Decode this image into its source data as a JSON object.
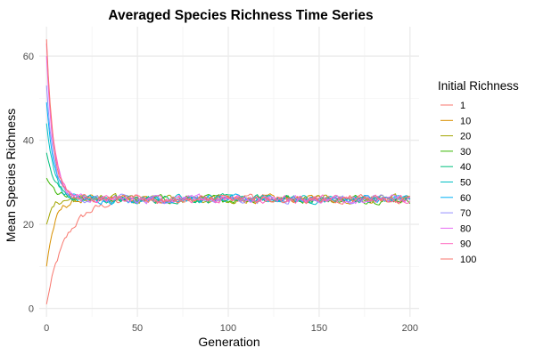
{
  "chart_data": {
    "type": "line",
    "title": "Averaged Species Richness Time Series",
    "xlabel": "Generation",
    "ylabel": "Mean Species Richness",
    "xlim": [
      -4,
      205
    ],
    "ylim": [
      -2,
      67
    ],
    "xticks": [
      0,
      50,
      100,
      150,
      200
    ],
    "yticks": [
      0,
      20,
      40,
      60
    ],
    "grid": true,
    "legend": {
      "title": "Initial Richness",
      "position": "right"
    },
    "equilibrium": 26,
    "generations": [
      0,
      200
    ],
    "series": [
      {
        "name": "1",
        "start": 1,
        "rate": 0.09,
        "color": "#F8766D"
      },
      {
        "name": "10",
        "start": 10,
        "rate": 0.22,
        "color": "#D89000"
      },
      {
        "name": "20",
        "start": 20,
        "rate": 0.3,
        "color": "#A3A500"
      },
      {
        "name": "30",
        "start": 31,
        "rate": 0.22,
        "color": "#39B600"
      },
      {
        "name": "40",
        "start": 37,
        "rate": 0.2,
        "color": "#00BF7D"
      },
      {
        "name": "50",
        "start": 44,
        "rate": 0.24,
        "color": "#00BFC4"
      },
      {
        "name": "60",
        "start": 49,
        "rate": 0.24,
        "color": "#00B0F6"
      },
      {
        "name": "70",
        "start": 53,
        "rate": 0.25,
        "color": "#9590FF"
      },
      {
        "name": "80",
        "start": 60,
        "rate": 0.25,
        "color": "#E76BF3"
      },
      {
        "name": "90",
        "start": 63,
        "rate": 0.26,
        "color": "#FF62BC"
      },
      {
        "name": "100",
        "start": 64,
        "rate": 0.26,
        "color": "#F8766D"
      }
    ]
  }
}
